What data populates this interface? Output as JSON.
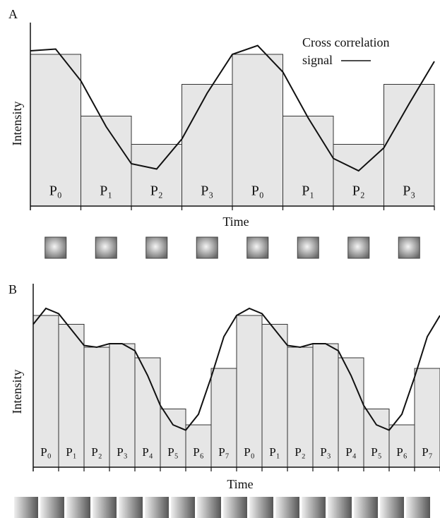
{
  "chart_data": [
    {
      "type": "bar",
      "panel_label": "A",
      "xlabel": "Time",
      "ylabel": "Intensity",
      "categories": [
        "P₀",
        "P₁",
        "P₂",
        "P₃",
        "P₀",
        "P₁",
        "P₂",
        "P₃"
      ],
      "values": [
        86,
        51,
        35,
        69,
        86,
        51,
        35,
        69
      ],
      "color": "#e6e6e6",
      "ylim": [
        0,
        100
      ],
      "xlim": [
        0,
        8
      ],
      "curve": {
        "x": [
          0,
          0.5,
          1,
          1.5,
          2,
          2.5,
          3,
          3.5,
          4,
          4.5,
          5,
          5.5,
          6,
          6.5,
          7,
          7.5,
          8
        ],
        "values": [
          88,
          89,
          71,
          45,
          24,
          21,
          38,
          64,
          86,
          91,
          76,
          50,
          27,
          20,
          33,
          58,
          82
        ],
        "color": "#111111"
      },
      "annotation": [
        "Cross correlation",
        "signal"
      ]
    },
    {
      "type": "bar",
      "panel_label": "B",
      "xlabel": "Time",
      "ylabel": "Intensity",
      "categories": [
        "P₀",
        "P₁",
        "P₂",
        "P₃",
        "P₄",
        "P₅",
        "P₆",
        "P₇",
        "P₀",
        "P₁",
        "P₂",
        "P₃",
        "P₄",
        "P₅",
        "P₆",
        "P₇"
      ],
      "values": [
        86,
        81,
        68,
        70,
        62,
        33,
        24,
        56,
        86,
        81,
        68,
        70,
        62,
        33,
        24,
        56
      ],
      "color": "#e6e6e6",
      "ylim": [
        0,
        100
      ],
      "xlim": [
        0,
        16
      ],
      "curve": {
        "x": [
          0,
          0.5,
          1,
          1.5,
          2,
          2.5,
          3,
          3.5,
          4,
          4.5,
          5,
          5.5,
          6,
          6.5,
          7,
          7.5,
          8,
          8.5,
          9,
          9.5,
          10,
          10.5,
          11,
          11.5,
          12,
          12.5,
          13,
          13.5,
          14,
          14.5,
          15,
          15.5,
          16
        ],
        "values": [
          81,
          90,
          87,
          78,
          69,
          68,
          70,
          70,
          66,
          52,
          35,
          24,
          21,
          30,
          51,
          74,
          86,
          90,
          87,
          78,
          69,
          68,
          70,
          70,
          66,
          52,
          35,
          24,
          21,
          30,
          51,
          74,
          86
        ],
        "color": "#111111"
      }
    }
  ]
}
